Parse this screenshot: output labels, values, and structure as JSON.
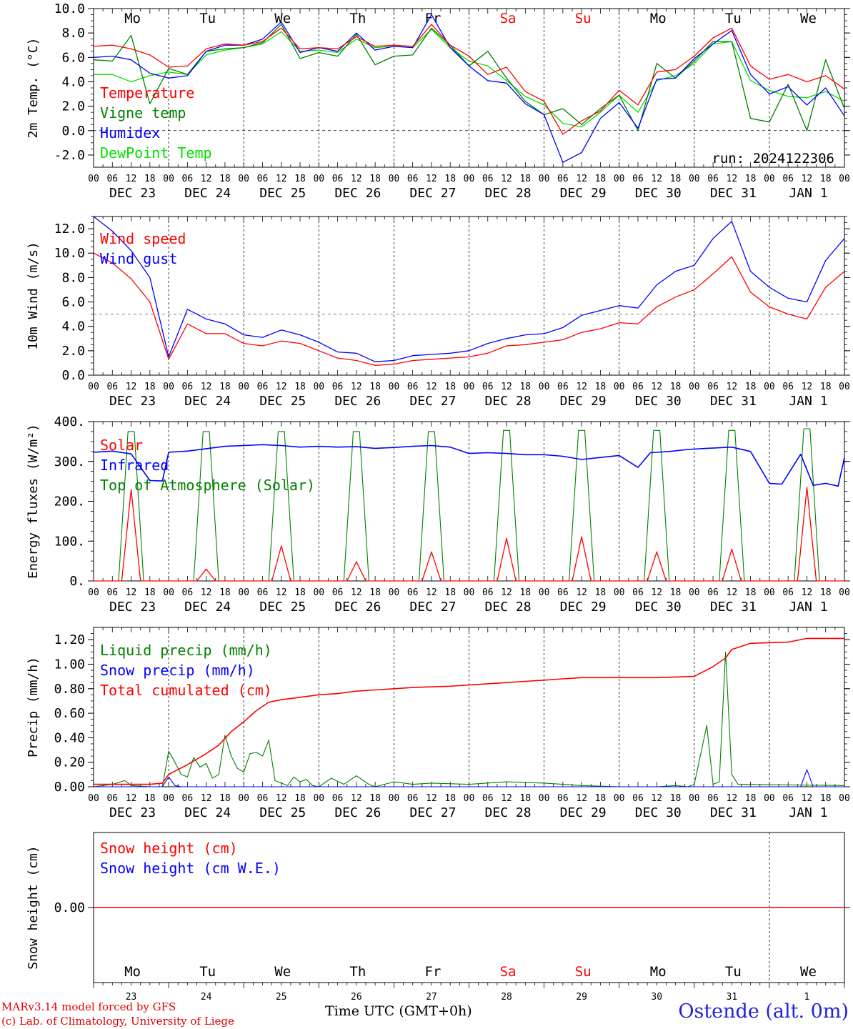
{
  "footer": {
    "model_line": "MARv3.14 model forced by GFS",
    "credit_line": "(c) Lab. of Climatology, University of Liege",
    "time_axis_label": "Time UTC (GMT+0h)",
    "location": "Ostende (alt. 0m)"
  },
  "colors": {
    "red": "#ff0000",
    "green": "#008000",
    "blue": "#0000ff",
    "lightgreen": "#00e000",
    "gray": "#808080"
  },
  "chart_data": [
    {
      "type": "line",
      "ylabel": "2m Temp. (°C)",
      "ylim": [
        -3,
        10
      ],
      "yticks": [
        "-2.0",
        "0.0",
        "2.0",
        "4.0",
        "6.0",
        "8.0",
        "10.0"
      ],
      "yticks_values": [
        -2,
        0,
        2,
        4,
        6,
        8,
        10
      ],
      "reference_line": 0,
      "run_label": "run: 2024122306",
      "day_names": [
        "Mo",
        "Tu",
        "We",
        "Th",
        "Fr",
        "Sa",
        "Su",
        "Mo",
        "Tu",
        "We"
      ],
      "weekend_days": [
        "Sa",
        "Su"
      ],
      "hour_ticks": [
        "00",
        "06",
        "12",
        "18"
      ],
      "date_labels": [
        "DEC 23",
        "DEC 24",
        "DEC 25",
        "DEC 26",
        "DEC 27",
        "DEC 28",
        "DEC 29",
        "DEC 30",
        "DEC 31",
        "JAN  1"
      ],
      "x_hours": [
        0,
        6,
        12,
        18,
        24,
        30,
        36,
        42,
        48,
        54,
        60,
        66,
        72,
        78,
        84,
        90,
        96,
        102,
        108,
        114,
        120,
        126,
        132,
        138,
        144,
        150,
        156,
        162,
        168,
        174,
        180,
        186,
        192,
        198,
        204,
        210,
        216,
        222,
        228,
        234,
        240
      ],
      "series": [
        {
          "name": "Temperature",
          "color": "#ff0000",
          "values": [
            6.9,
            7.0,
            6.7,
            6.2,
            5.2,
            5.3,
            6.7,
            7.1,
            7.0,
            7.3,
            8.4,
            6.7,
            6.8,
            6.7,
            7.7,
            6.9,
            7.0,
            6.9,
            8.7,
            7.0,
            6.1,
            4.6,
            5.2,
            3.2,
            2.4,
            -0.3,
            0.8,
            1.6,
            3.3,
            2.1,
            4.8,
            5.0,
            6.1,
            7.6,
            8.4,
            5.3,
            4.2,
            4.6,
            4.0,
            4.5,
            3.4
          ]
        },
        {
          "name": "Vigne temp",
          "color": "#008000",
          "values": [
            5.8,
            5.7,
            7.8,
            2.2,
            5.1,
            4.6,
            6.5,
            6.7,
            6.8,
            7.2,
            8.7,
            5.9,
            6.4,
            6.1,
            7.9,
            5.4,
            6.1,
            6.2,
            8.4,
            7.0,
            5.3,
            6.5,
            4.3,
            2.4,
            1.3,
            1.8,
            0.5,
            1.8,
            2.9,
            0.0,
            5.5,
            4.3,
            5.7,
            7.3,
            7.3,
            1.0,
            0.7,
            3.8,
            0.0,
            5.8,
            1.8
          ]
        },
        {
          "name": "Humidex",
          "color": "#0000ff",
          "values": [
            6.0,
            6.1,
            5.8,
            4.7,
            4.3,
            4.5,
            6.5,
            7.0,
            7.0,
            7.5,
            8.9,
            6.4,
            6.8,
            6.5,
            8.0,
            6.6,
            6.9,
            6.8,
            9.5,
            6.8,
            5.3,
            4.1,
            3.9,
            2.2,
            1.3,
            -2.6,
            -1.8,
            1.0,
            2.3,
            0.2,
            4.2,
            4.3,
            5.9,
            7.1,
            8.2,
            4.6,
            3.0,
            3.6,
            2.1,
            3.5,
            1.2
          ]
        },
        {
          "name": "DewPoint Temp",
          "color": "#00e000",
          "values": [
            4.6,
            4.6,
            4.0,
            4.5,
            4.8,
            4.6,
            6.2,
            6.6,
            6.8,
            7.1,
            8.1,
            6.5,
            6.6,
            6.4,
            7.5,
            6.8,
            6.9,
            6.8,
            8.3,
            6.8,
            5.7,
            5.3,
            4.1,
            2.8,
            2.1,
            0.6,
            0.3,
            1.5,
            2.9,
            1.5,
            4.1,
            4.5,
            5.5,
            7.1,
            7.3,
            4.1,
            3.3,
            2.8,
            2.7,
            3.2,
            2.4
          ]
        }
      ]
    },
    {
      "type": "line",
      "ylabel": "10m Wind (m/s)",
      "ylim": [
        0,
        13
      ],
      "yticks": [
        "0.0",
        "2.0",
        "4.0",
        "6.0",
        "8.0",
        "10.0",
        "12.0"
      ],
      "yticks_values": [
        0,
        2,
        4,
        6,
        8,
        10,
        12
      ],
      "reference_line": 5,
      "hour_ticks": [
        "00",
        "06",
        "12",
        "18"
      ],
      "date_labels": [
        "DEC 23",
        "DEC 24",
        "DEC 25",
        "DEC 26",
        "DEC 27",
        "DEC 28",
        "DEC 29",
        "DEC 30",
        "DEC 31",
        "JAN  1"
      ],
      "x_hours": [
        0,
        6,
        12,
        18,
        24,
        30,
        36,
        42,
        48,
        54,
        60,
        66,
        72,
        78,
        84,
        90,
        96,
        102,
        108,
        114,
        120,
        126,
        132,
        138,
        144,
        150,
        156,
        162,
        168,
        174,
        180,
        186,
        192,
        198,
        204,
        210,
        216,
        222,
        228,
        234,
        240
      ],
      "series": [
        {
          "name": "Wind speed",
          "color": "#ff0000",
          "values": [
            10.0,
            9.2,
            7.9,
            6.0,
            1.3,
            4.2,
            3.4,
            3.4,
            2.6,
            2.4,
            2.8,
            2.6,
            2.0,
            1.4,
            1.2,
            0.8,
            0.9,
            1.2,
            1.3,
            1.4,
            1.5,
            1.8,
            2.4,
            2.5,
            2.7,
            2.9,
            3.5,
            3.8,
            4.3,
            4.2,
            5.6,
            6.4,
            7.0,
            8.3,
            9.7,
            6.8,
            5.6,
            5.0,
            4.6,
            7.2,
            8.5
          ]
        },
        {
          "name": "Wind gust",
          "color": "#0000ff",
          "values": [
            13.0,
            11.8,
            10.2,
            8.0,
            1.5,
            5.4,
            4.6,
            4.2,
            3.3,
            3.1,
            3.7,
            3.3,
            2.7,
            1.9,
            1.8,
            1.1,
            1.2,
            1.6,
            1.7,
            1.8,
            2.0,
            2.6,
            3.0,
            3.3,
            3.4,
            3.9,
            4.9,
            5.3,
            5.7,
            5.5,
            7.4,
            8.5,
            9.0,
            11.2,
            12.6,
            8.5,
            7.2,
            6.3,
            6.0,
            9.4,
            11.2
          ]
        }
      ]
    },
    {
      "type": "line",
      "ylabel": "Energy fluxes (W/m²)",
      "ylim": [
        0,
        400
      ],
      "yticks": [
        "0.",
        "100.",
        "200.",
        "300.",
        "400."
      ],
      "yticks_values": [
        0,
        100,
        200,
        300,
        400
      ],
      "hour_ticks": [
        "00",
        "06",
        "12",
        "18"
      ],
      "date_labels": [
        "DEC 23",
        "DEC 24",
        "DEC 25",
        "DEC 26",
        "DEC 27",
        "DEC 28",
        "DEC 29",
        "DEC 30",
        "DEC 31",
        "JAN  1"
      ],
      "solar_peaks": [
        230,
        30,
        88,
        48,
        73,
        107,
        111,
        73,
        80,
        235
      ],
      "toa_peaks": [
        375,
        375,
        375,
        375,
        375,
        378,
        378,
        378,
        378,
        382
      ],
      "infrared_x": [
        0,
        6,
        12,
        18,
        22,
        24,
        30,
        36,
        42,
        48,
        54,
        60,
        66,
        72,
        78,
        84,
        90,
        96,
        102,
        108,
        114,
        120,
        126,
        132,
        138,
        144,
        150,
        156,
        162,
        168,
        174,
        178,
        184,
        190,
        196,
        204,
        210,
        216,
        220,
        226,
        230,
        234,
        238,
        240
      ],
      "infrared_y": [
        323,
        326,
        319,
        252,
        251,
        323,
        326,
        332,
        338,
        340,
        342,
        340,
        336,
        338,
        336,
        337,
        333,
        335,
        338,
        340,
        336,
        320,
        322,
        320,
        317,
        317,
        313,
        305,
        310,
        315,
        285,
        322,
        325,
        330,
        333,
        336,
        325,
        245,
        243,
        318,
        240,
        245,
        238,
        310
      ],
      "series": [
        {
          "name": "Solar",
          "color": "#ff0000"
        },
        {
          "name": "Infrared",
          "color": "#0000ff"
        },
        {
          "name": "Top of Atmosphere (Solar)",
          "color": "#008000"
        }
      ]
    },
    {
      "type": "line",
      "ylabel": "Precip (mm/h)",
      "ylim": [
        0,
        1.3
      ],
      "yticks": [
        "0.00",
        "0.20",
        "0.40",
        "0.60",
        "0.80",
        "1.00",
        "1.20"
      ],
      "yticks_values": [
        0,
        0.2,
        0.4,
        0.6,
        0.8,
        1.0,
        1.2
      ],
      "hour_ticks": [
        "00",
        "06",
        "12",
        "18"
      ],
      "date_labels": [
        "DEC 23",
        "DEC 24",
        "DEC 25",
        "DEC 26",
        "DEC 27",
        "DEC 28",
        "DEC 29",
        "DEC 30",
        "DEC 31",
        "JAN  1"
      ],
      "series": [
        {
          "name": "Liquid precip (mm/h)",
          "color": "#008000",
          "x": [
            0,
            6,
            10,
            12,
            18,
            22,
            24,
            26,
            28,
            30,
            32,
            34,
            36,
            38,
            40,
            42,
            44,
            46,
            48,
            50,
            52,
            54,
            56,
            58,
            60,
            62,
            64,
            66,
            68,
            70,
            72,
            76,
            80,
            84,
            88,
            90,
            96,
            102,
            108,
            120,
            132,
            144,
            150,
            156,
            168,
            180,
            186,
            190,
            192,
            196,
            198,
            200,
            202,
            204,
            206,
            240
          ],
          "y": [
            0,
            0.02,
            0.05,
            0.01,
            0.0,
            0.0,
            0.29,
            0.2,
            0.1,
            0.08,
            0.24,
            0.16,
            0.19,
            0.07,
            0.1,
            0.42,
            0.25,
            0.15,
            0.12,
            0.27,
            0.28,
            0.25,
            0.38,
            0.05,
            0.03,
            0.01,
            0.08,
            0.04,
            0.06,
            0.01,
            0.0,
            0.07,
            0.02,
            0.09,
            0.02,
            0.0,
            0.04,
            0.02,
            0.03,
            0.02,
            0.04,
            0.03,
            0.02,
            0.01,
            0.0,
            0.0,
            0.01,
            0.0,
            0.02,
            0.5,
            0.02,
            0.04,
            1.1,
            0.1,
            0.02,
            0.01
          ]
        },
        {
          "name": "Snow precip (mm/h)",
          "color": "#0000ff",
          "x": [
            0,
            22,
            24,
            26,
            28,
            220,
            226,
            228,
            230,
            240
          ],
          "y": [
            0,
            0,
            0.08,
            0.01,
            0,
            0,
            0,
            0.14,
            0,
            0
          ]
        },
        {
          "name": "Total cumulated (cm)",
          "color": "#ff0000",
          "x": [
            0,
            18,
            22,
            24,
            30,
            36,
            40,
            44,
            48,
            52,
            56,
            60,
            66,
            72,
            78,
            84,
            90,
            96,
            102,
            108,
            114,
            120,
            126,
            132,
            138,
            144,
            150,
            156,
            162,
            168,
            180,
            192,
            198,
            202,
            204,
            210,
            216,
            222,
            228,
            240
          ],
          "y": [
            0.02,
            0.02,
            0.03,
            0.1,
            0.18,
            0.27,
            0.34,
            0.45,
            0.53,
            0.62,
            0.69,
            0.71,
            0.73,
            0.75,
            0.76,
            0.78,
            0.79,
            0.8,
            0.81,
            0.815,
            0.82,
            0.83,
            0.84,
            0.85,
            0.86,
            0.87,
            0.88,
            0.89,
            0.89,
            0.89,
            0.89,
            0.9,
            0.98,
            1.05,
            1.12,
            1.17,
            1.175,
            1.18,
            1.21,
            1.21
          ]
        }
      ]
    },
    {
      "type": "line",
      "ylabel": "Snow height (cm)",
      "yticks": [
        "0.00"
      ],
      "yticks_values": [
        0
      ],
      "day_names": [
        "Mo",
        "Tu",
        "We",
        "Th",
        "Fr",
        "Sa",
        "Su",
        "Mo",
        "Tu",
        "We"
      ],
      "weekend_days": [
        "Sa",
        "Su"
      ],
      "day_numbers": [
        "23",
        "24",
        "25",
        "26",
        "27",
        "28",
        "29",
        "30",
        "31",
        "1"
      ],
      "series": [
        {
          "name": "Snow height (cm)",
          "color": "#ff0000",
          "values": [
            0,
            0
          ]
        },
        {
          "name": "Snow height (cm W.E.)",
          "color": "#0000ff",
          "values": []
        }
      ]
    }
  ]
}
